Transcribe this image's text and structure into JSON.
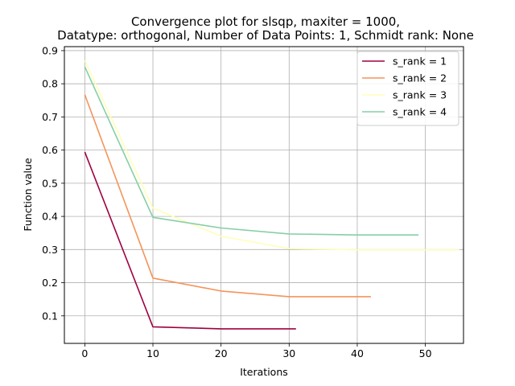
{
  "chart_data": {
    "type": "line",
    "title_line1": "Convergence plot for slsqp, maxiter = 1000,",
    "title_line2": "Datatype: orthogonal, Number of Data Points: 1, Schmidt rank: None",
    "xlabel": "Iterations",
    "ylabel": "Function value",
    "xlim": [
      -3,
      55.6
    ],
    "ylim": [
      0.017,
      0.912
    ],
    "xticks": [
      0,
      10,
      20,
      30,
      40,
      50
    ],
    "yticks": [
      0.1,
      0.2,
      0.3,
      0.4,
      0.5,
      0.6,
      0.7,
      0.8,
      0.9
    ],
    "grid": true,
    "legend_position": "top-right",
    "series": [
      {
        "name": "s_rank = 1",
        "color": "#9e0142",
        "x": [
          0,
          10,
          20,
          31
        ],
        "y": [
          0.594,
          0.067,
          0.061,
          0.061
        ]
      },
      {
        "name": "s_rank = 2",
        "color": "#f4945a",
        "x": [
          0,
          10,
          20,
          30,
          42
        ],
        "y": [
          0.767,
          0.214,
          0.175,
          0.158,
          0.158
        ]
      },
      {
        "name": "s_rank = 3",
        "color": "#fefebb",
        "x": [
          0,
          10,
          20,
          30,
          40,
          55
        ],
        "y": [
          0.87,
          0.425,
          0.34,
          0.303,
          0.299,
          0.299
        ]
      },
      {
        "name": "s_rank = 4",
        "color": "#86cfa5",
        "x": [
          0,
          10,
          20,
          30,
          40,
          49
        ],
        "y": [
          0.851,
          0.397,
          0.365,
          0.347,
          0.344,
          0.344
        ]
      }
    ]
  }
}
